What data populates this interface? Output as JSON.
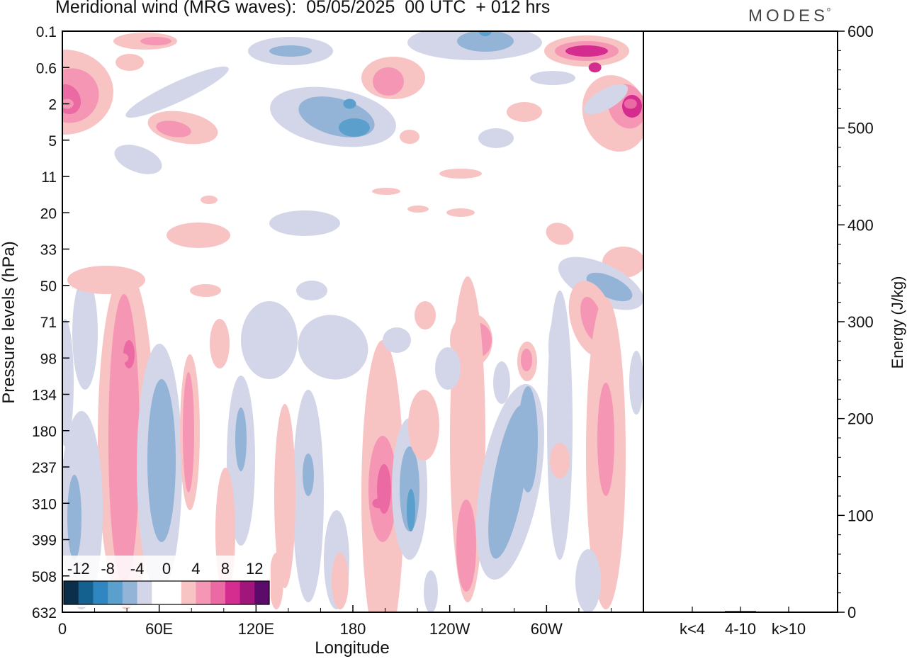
{
  "header": {
    "title": "Meridional wind (MRG waves):  05/05/2025  00 UTC  + 012 hrs",
    "brand": "MODES"
  },
  "chart_data": [
    {
      "type": "heatmap",
      "title": "Meridional wind (MRG waves):  05/05/2025  00 UTC  + 012 hrs",
      "xlabel": "Longitude",
      "ylabel": "Pressure levels (hPa)",
      "x_ticks": [
        "0",
        "60E",
        "120E",
        "180",
        "120W",
        "60W"
      ],
      "x_tick_values": [
        0,
        60,
        120,
        180,
        240,
        300
      ],
      "xlim": [
        0,
        360
      ],
      "y_ticks": [
        "0.1",
        "0.6",
        "2",
        "5",
        "11",
        "20",
        "33",
        "50",
        "71",
        "98",
        "134",
        "180",
        "237",
        "310",
        "399",
        "508",
        "632"
      ],
      "y_axis": "pressure levels, top to bottom",
      "colorbar": {
        "tick_labels": [
          "-12",
          "-8",
          "-4",
          "0",
          "4",
          "8",
          "12"
        ],
        "levels": [
          -16,
          -14,
          -12,
          -10,
          -8,
          -6,
          -4,
          -2,
          0,
          2,
          4,
          6,
          8,
          10,
          12,
          14,
          16
        ],
        "colors": [
          "#0b2f4a",
          "#14608f",
          "#2f86c0",
          "#5b9fcc",
          "#93b4d7",
          "#d3d6e8",
          "#ffffff",
          "#ffffff",
          "#f8c3c3",
          "#f596b5",
          "#ec6aa3",
          "#d42d8f",
          "#a0167a",
          "#5c0b6a"
        ]
      },
      "contour_features": [
        {
          "sign": "positive",
          "lon": 37,
          "level": "98",
          "peak": 8
        },
        {
          "sign": "positive",
          "lon": 196,
          "level": "310",
          "peak": 10
        },
        {
          "sign": "positive",
          "lon": 330,
          "level": "0.6",
          "peak": 12
        },
        {
          "sign": "positive",
          "lon": 352,
          "level": "2",
          "peak": 10
        },
        {
          "sign": "positive",
          "lon": 3,
          "level": "2",
          "peak": 8
        },
        {
          "sign": "negative",
          "lon": 178,
          "level": "2",
          "peak": -8
        },
        {
          "sign": "negative",
          "lon": 262,
          "level": "0.1",
          "peak": -8
        },
        {
          "sign": "negative",
          "lon": 62,
          "level": "180",
          "peak": -6
        }
      ]
    },
    {
      "type": "bar",
      "ylabel": "Energy (J/kg)",
      "categories": [
        "k<4",
        "4-10",
        "k>10"
      ],
      "values": [
        0,
        1,
        0
      ],
      "ylim": [
        0,
        600
      ],
      "y_ticks": [
        "0",
        "100",
        "200",
        "300",
        "400",
        "500",
        "600"
      ]
    }
  ]
}
